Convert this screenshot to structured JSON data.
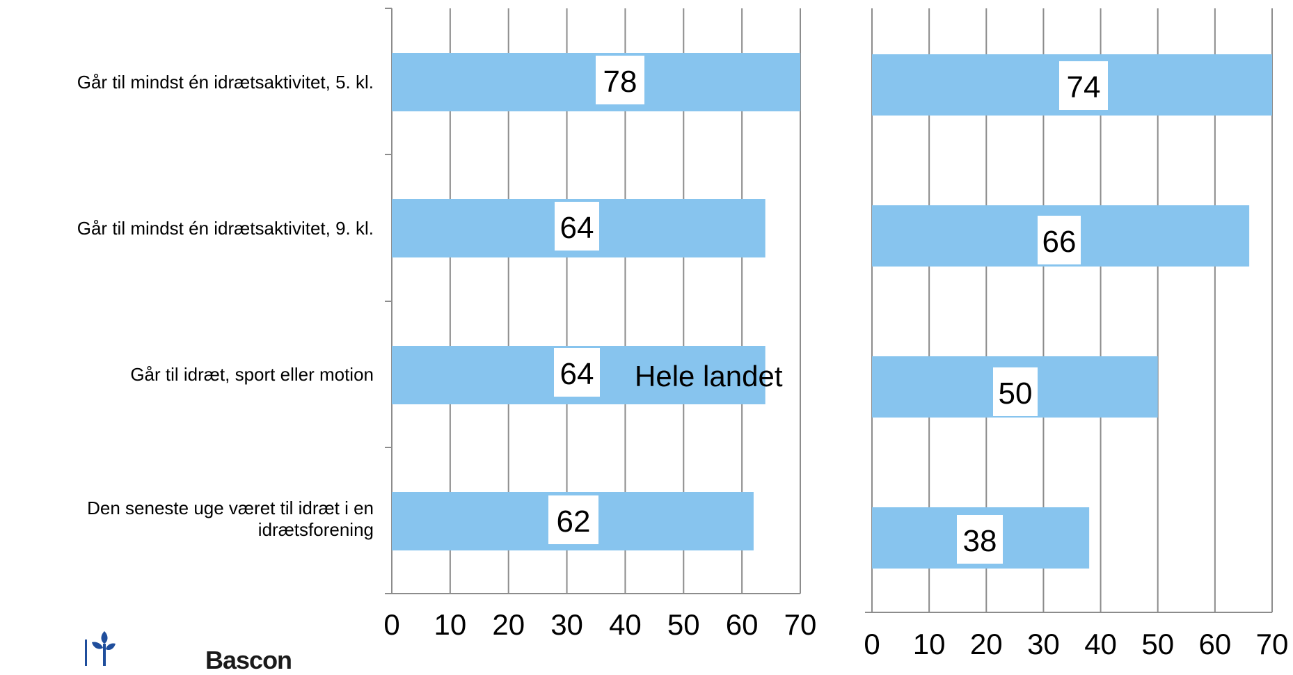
{
  "chart_data": [
    {
      "type": "bar",
      "orientation": "horizontal",
      "categories": [
        "Går til mindst én idrætsaktivitet, 5. kl.",
        "Går til mindst én idrætsaktivitet, 9. kl.",
        "Går til idræt, sport eller motion",
        "Den seneste uge været til idræt i en idrætsforening"
      ],
      "values": [
        78,
        64,
        64,
        62
      ],
      "data_labels": [
        "78",
        "64",
        "64",
        "62"
      ],
      "annotation": "Hele landet",
      "xlim": [
        0,
        70
      ],
      "xticks": [
        "0",
        "10",
        "20",
        "30",
        "40",
        "50",
        "60",
        "70"
      ],
      "grid": true,
      "bar_color": "#87C4EE"
    },
    {
      "type": "bar",
      "orientation": "horizontal",
      "categories": [
        "Går til mindst én idrætsaktivitet, 5. kl.",
        "Går til mindst én idrætsaktivitet, 9. kl.",
        "Går til idræt, sport eller motion",
        "Den seneste uge været til idræt i en idrætsforening"
      ],
      "values": [
        74,
        66,
        50,
        38
      ],
      "data_labels": [
        "74",
        "66",
        "50",
        "38"
      ],
      "xlim": [
        0,
        70
      ],
      "xticks": [
        "0",
        "10",
        "20",
        "30",
        "40",
        "50",
        "60",
        "70"
      ],
      "grid": true,
      "bar_color": "#87C4EE"
    }
  ],
  "logo": {
    "text": "Bascon",
    "icon": "leaf-figure-icon",
    "color": "#1f4e9c"
  }
}
